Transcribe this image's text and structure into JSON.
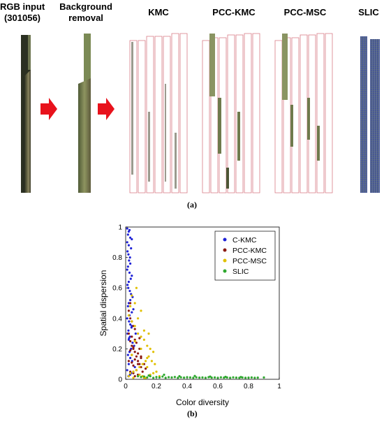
{
  "panel_a": {
    "headers": {
      "rgb_line1": "RGB input",
      "rgb_line2": "(301056)",
      "bg_line1": "Background",
      "bg_line2": "removal",
      "kmc": "KMC",
      "pcc_kmc": "PCC-KMC",
      "pcc_msc": "PCC-MSC",
      "slic": "SLIC"
    },
    "label": "(a)",
    "colors": {
      "arrow": "#e8121c",
      "leaf_dark": "#3e4a2c",
      "leaf_green": "#7b8a55",
      "segment_outline": "#d87a84",
      "slic_blue": "#4a5fb0"
    }
  },
  "panel_b": {
    "label": "(b)"
  },
  "chart_data": {
    "type": "scatter",
    "xlabel": "Color diversity",
    "ylabel": "Spatial dispersion",
    "xlim": [
      0,
      1
    ],
    "ylim": [
      0,
      1
    ],
    "xticks": [
      "0",
      "0.2",
      "0.4",
      "0.6",
      "0.8",
      "1"
    ],
    "yticks": [
      "0",
      "0.2",
      "0.4",
      "0.6",
      "0.8",
      "1"
    ],
    "grid": false,
    "legend_position": "top-right",
    "series": [
      {
        "name": "C-KMC",
        "color": "#1f22d6",
        "x": [
          0.01,
          0.02,
          0.015,
          0.03,
          0.025,
          0.01,
          0.02,
          0.035,
          0.04,
          0.012,
          0.018,
          0.028,
          0.022,
          0.03,
          0.015,
          0.01,
          0.025,
          0.04,
          0.033,
          0.02,
          0.012,
          0.017,
          0.027,
          0.035,
          0.045,
          0.03,
          0.02,
          0.015,
          0.05,
          0.04,
          0.025,
          0.01,
          0.022,
          0.03,
          0.038,
          0.018,
          0.012,
          0.028,
          0.02,
          0.045,
          0.055,
          0.035,
          0.025,
          0.015,
          0.03,
          0.042,
          0.02,
          0.06,
          0.01,
          0.05,
          0.035,
          0.028,
          0.018,
          0.04,
          0.065,
          0.022
        ],
        "y": [
          0.99,
          0.97,
          0.95,
          0.93,
          0.98,
          0.9,
          0.88,
          0.86,
          0.92,
          0.84,
          0.82,
          0.8,
          0.78,
          0.76,
          0.74,
          0.72,
          0.7,
          0.68,
          0.66,
          0.64,
          0.62,
          0.6,
          0.58,
          0.56,
          0.54,
          0.52,
          0.5,
          0.48,
          0.46,
          0.44,
          0.42,
          0.4,
          0.38,
          0.36,
          0.34,
          0.32,
          0.3,
          0.28,
          0.26,
          0.24,
          0.22,
          0.2,
          0.18,
          0.16,
          0.14,
          0.12,
          0.1,
          0.08,
          0.06,
          0.05,
          0.04,
          0.03,
          0.02,
          0.35,
          0.3,
          0.27
        ]
      },
      {
        "name": "PCC-KMC",
        "color": "#8b1a12",
        "x": [
          0.02,
          0.03,
          0.04,
          0.05,
          0.06,
          0.07,
          0.08,
          0.09,
          0.1,
          0.03,
          0.05,
          0.07,
          0.04,
          0.06,
          0.08,
          0.02,
          0.1,
          0.12,
          0.05,
          0.03,
          0.07,
          0.09,
          0.04,
          0.06,
          0.11,
          0.08,
          0.05,
          0.02,
          0.04,
          0.13,
          0.06,
          0.03,
          0.09,
          0.07,
          0.05,
          0.1,
          0.04,
          0.06,
          0.08,
          0.03
        ],
        "y": [
          0.3,
          0.25,
          0.22,
          0.2,
          0.18,
          0.15,
          0.12,
          0.1,
          0.08,
          0.05,
          0.04,
          0.06,
          0.28,
          0.26,
          0.17,
          0.12,
          0.14,
          0.1,
          0.35,
          0.4,
          0.24,
          0.2,
          0.16,
          0.13,
          0.05,
          0.03,
          0.09,
          0.45,
          0.11,
          0.07,
          0.33,
          0.19,
          0.27,
          0.06,
          0.21,
          0.15,
          0.38,
          0.02,
          0.1,
          0.5
        ]
      },
      {
        "name": "PCC-MSC",
        "color": "#e0c000",
        "x": [
          0.02,
          0.04,
          0.06,
          0.08,
          0.1,
          0.12,
          0.14,
          0.16,
          0.18,
          0.15,
          0.13,
          0.11,
          0.09,
          0.07,
          0.05,
          0.03,
          0.17,
          0.19,
          0.1,
          0.06,
          0.04,
          0.12,
          0.14,
          0.08,
          0.2,
          0.16,
          0.02,
          0.05,
          0.09,
          0.11,
          0.13,
          0.07,
          0.03,
          0.15,
          0.18,
          0.06,
          0.04,
          0.08,
          0.1,
          0.22,
          0.14,
          0.12
        ],
        "y": [
          0.42,
          0.38,
          0.35,
          0.3,
          0.28,
          0.26,
          0.22,
          0.2,
          0.18,
          0.15,
          0.12,
          0.1,
          0.08,
          0.06,
          0.05,
          0.04,
          0.12,
          0.1,
          0.45,
          0.5,
          0.55,
          0.32,
          0.08,
          0.02,
          0.05,
          0.03,
          0.02,
          0.01,
          0.03,
          0.02,
          0.01,
          0.6,
          0.48,
          0.3,
          0.04,
          0.25,
          0.16,
          0.4,
          0.2,
          0.02,
          0.14,
          0.01
        ]
      },
      {
        "name": "SLIC",
        "color": "#2fa82f",
        "x": [
          0.08,
          0.1,
          0.12,
          0.14,
          0.16,
          0.18,
          0.2,
          0.22,
          0.24,
          0.26,
          0.28,
          0.3,
          0.32,
          0.34,
          0.36,
          0.38,
          0.4,
          0.42,
          0.44,
          0.46,
          0.48,
          0.5,
          0.52,
          0.54,
          0.56,
          0.58,
          0.6,
          0.62,
          0.64,
          0.66,
          0.68,
          0.7,
          0.72,
          0.74,
          0.76,
          0.78,
          0.8,
          0.82,
          0.84,
          0.86,
          0.9,
          0.15,
          0.25,
          0.35,
          0.45,
          0.55,
          0.65,
          0.75
        ],
        "y": [
          0.02,
          0.015,
          0.018,
          0.012,
          0.02,
          0.01,
          0.015,
          0.012,
          0.018,
          0.01,
          0.014,
          0.012,
          0.015,
          0.01,
          0.013,
          0.011,
          0.014,
          0.012,
          0.01,
          0.013,
          0.011,
          0.012,
          0.01,
          0.014,
          0.011,
          0.012,
          0.01,
          0.013,
          0.011,
          0.012,
          0.01,
          0.013,
          0.011,
          0.01,
          0.012,
          0.01,
          0.011,
          0.012,
          0.01,
          0.011,
          0.012,
          0.025,
          0.03,
          0.02,
          0.022,
          0.018,
          0.016,
          0.015
        ]
      }
    ]
  }
}
